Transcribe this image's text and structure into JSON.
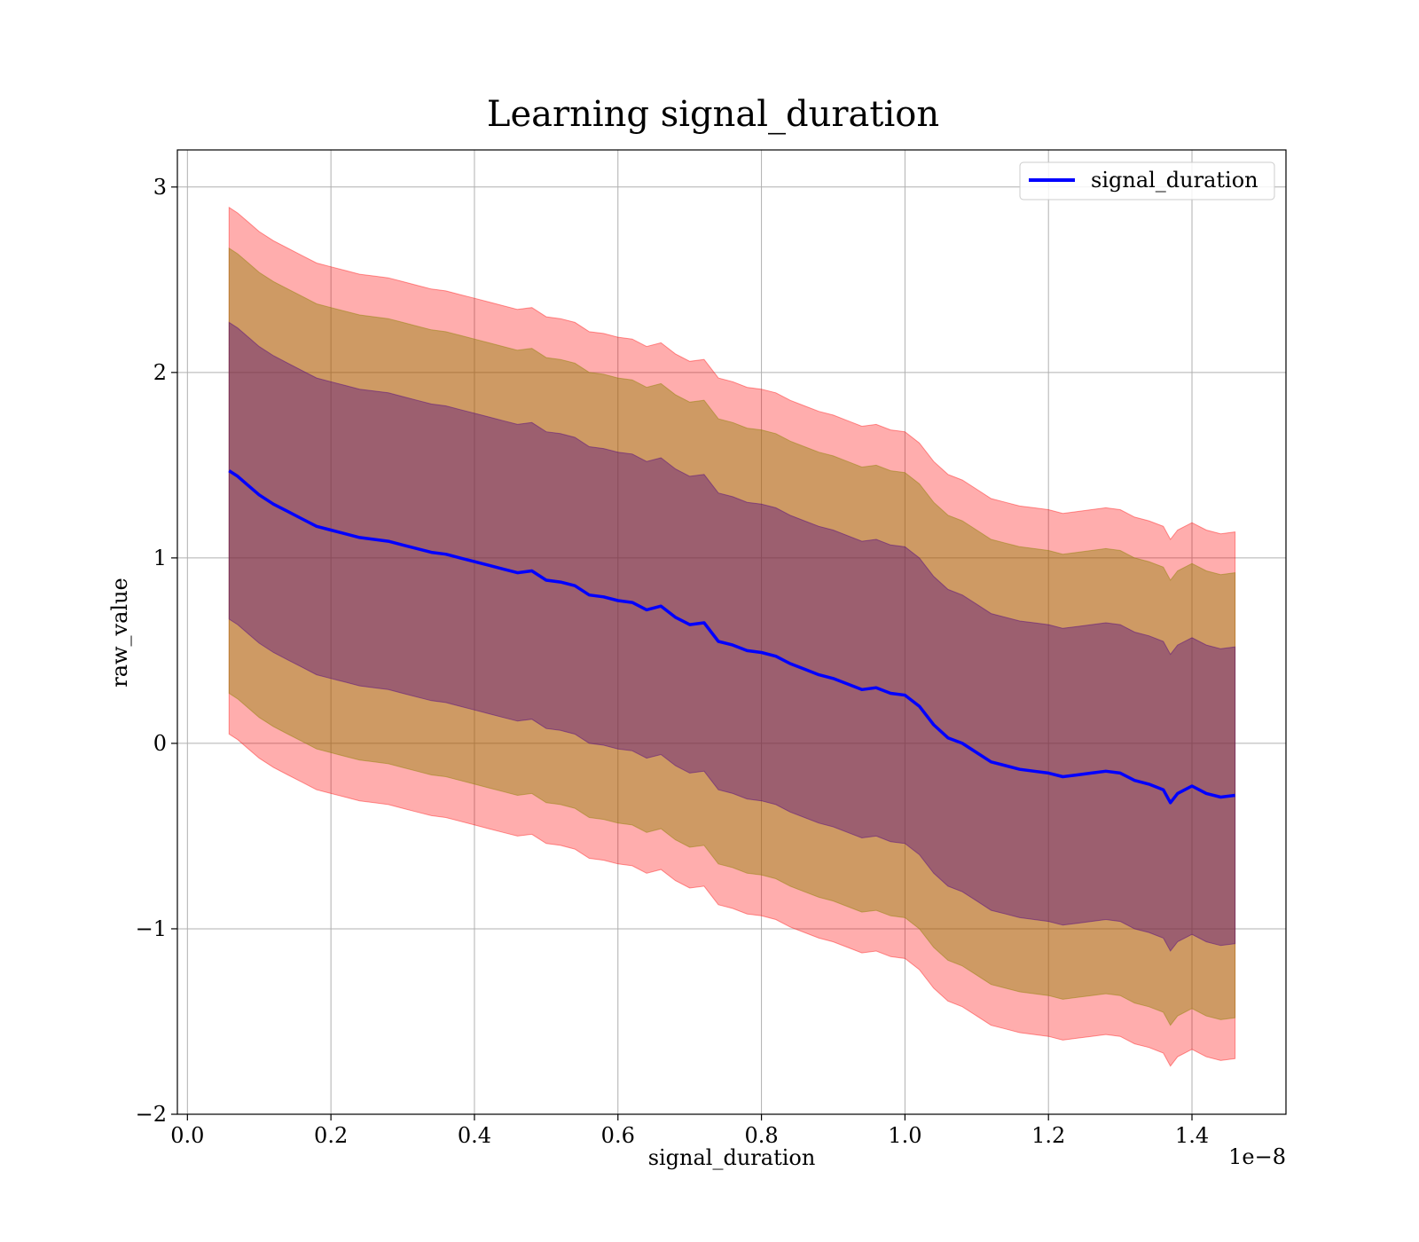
{
  "chart_data": {
    "type": "line",
    "title": "Learning signal_duration",
    "xlabel": "signal_duration",
    "ylabel": "raw_value",
    "x_offset_label": "1e−8",
    "xlim": [
      -0.014,
      1.531
    ],
    "ylim": [
      -2.0,
      3.2
    ],
    "x_ticks": [
      0.0,
      0.2,
      0.4,
      0.6,
      0.8,
      1.0,
      1.2,
      1.4
    ],
    "x_tick_labels": [
      "0.0",
      "0.2",
      "0.4",
      "0.6",
      "0.8",
      "1.0",
      "1.2",
      "1.4"
    ],
    "y_ticks": [
      -2,
      -1,
      0,
      1,
      2,
      3
    ],
    "y_tick_labels": [
      "−2",
      "−1",
      "0",
      "1",
      "2",
      "3"
    ],
    "grid": true,
    "legend": {
      "position": "top-right",
      "entries": [
        "signal_duration"
      ]
    },
    "colors": {
      "line": "#0000ff",
      "band_outer": "#ff0000",
      "band_middle": "#8b8000",
      "band_inner": "#4b0082"
    },
    "series": [
      {
        "name": "signal_duration",
        "x": [
          0.058,
          0.07,
          0.085,
          0.1,
          0.12,
          0.14,
          0.16,
          0.18,
          0.2,
          0.22,
          0.24,
          0.26,
          0.28,
          0.3,
          0.32,
          0.34,
          0.36,
          0.38,
          0.4,
          0.42,
          0.44,
          0.46,
          0.48,
          0.5,
          0.52,
          0.54,
          0.56,
          0.58,
          0.6,
          0.62,
          0.64,
          0.66,
          0.68,
          0.7,
          0.72,
          0.74,
          0.76,
          0.78,
          0.8,
          0.82,
          0.84,
          0.86,
          0.88,
          0.9,
          0.92,
          0.94,
          0.96,
          0.98,
          1.0,
          1.02,
          1.04,
          1.06,
          1.08,
          1.1,
          1.12,
          1.14,
          1.16,
          1.18,
          1.2,
          1.22,
          1.24,
          1.26,
          1.28,
          1.3,
          1.32,
          1.34,
          1.36,
          1.37,
          1.38,
          1.4,
          1.42,
          1.44,
          1.46
        ],
        "values": [
          1.47,
          1.44,
          1.39,
          1.34,
          1.29,
          1.25,
          1.21,
          1.17,
          1.15,
          1.13,
          1.11,
          1.1,
          1.09,
          1.07,
          1.05,
          1.03,
          1.02,
          1.0,
          0.98,
          0.96,
          0.94,
          0.92,
          0.93,
          0.88,
          0.87,
          0.85,
          0.8,
          0.79,
          0.77,
          0.76,
          0.72,
          0.74,
          0.68,
          0.64,
          0.65,
          0.55,
          0.53,
          0.5,
          0.49,
          0.47,
          0.43,
          0.4,
          0.37,
          0.35,
          0.32,
          0.29,
          0.3,
          0.27,
          0.26,
          0.2,
          0.1,
          0.03,
          0.0,
          -0.05,
          -0.1,
          -0.12,
          -0.14,
          -0.15,
          -0.16,
          -0.18,
          -0.17,
          -0.16,
          -0.15,
          -0.16,
          -0.2,
          -0.22,
          -0.25,
          -0.32,
          -0.27,
          -0.23,
          -0.27,
          -0.29,
          -0.28
        ],
        "band_inner_upper": [
          2.27,
          2.24,
          2.19,
          2.14,
          2.09,
          2.05,
          2.01,
          1.97,
          1.95,
          1.93,
          1.91,
          1.9,
          1.89,
          1.87,
          1.85,
          1.83,
          1.82,
          1.8,
          1.78,
          1.76,
          1.74,
          1.72,
          1.73,
          1.68,
          1.67,
          1.65,
          1.6,
          1.59,
          1.57,
          1.56,
          1.52,
          1.54,
          1.48,
          1.44,
          1.45,
          1.35,
          1.33,
          1.3,
          1.29,
          1.27,
          1.23,
          1.2,
          1.17,
          1.15,
          1.12,
          1.09,
          1.1,
          1.07,
          1.06,
          1.0,
          0.9,
          0.83,
          0.8,
          0.75,
          0.7,
          0.68,
          0.66,
          0.65,
          0.64,
          0.62,
          0.63,
          0.64,
          0.65,
          0.64,
          0.6,
          0.58,
          0.55,
          0.48,
          0.53,
          0.57,
          0.53,
          0.51,
          0.52
        ],
        "band_inner_lower": [
          0.67,
          0.64,
          0.59,
          0.54,
          0.49,
          0.45,
          0.41,
          0.37,
          0.35,
          0.33,
          0.31,
          0.3,
          0.29,
          0.27,
          0.25,
          0.23,
          0.22,
          0.2,
          0.18,
          0.16,
          0.14,
          0.12,
          0.13,
          0.08,
          0.07,
          0.05,
          0.0,
          -0.01,
          -0.03,
          -0.04,
          -0.08,
          -0.06,
          -0.12,
          -0.16,
          -0.15,
          -0.25,
          -0.27,
          -0.3,
          -0.31,
          -0.33,
          -0.37,
          -0.4,
          -0.43,
          -0.45,
          -0.48,
          -0.51,
          -0.5,
          -0.53,
          -0.54,
          -0.6,
          -0.7,
          -0.77,
          -0.8,
          -0.85,
          -0.9,
          -0.92,
          -0.94,
          -0.95,
          -0.96,
          -0.98,
          -0.97,
          -0.96,
          -0.95,
          -0.96,
          -1.0,
          -1.02,
          -1.05,
          -1.12,
          -1.07,
          -1.03,
          -1.07,
          -1.09,
          -1.08
        ],
        "band_middle_upper": [
          2.67,
          2.64,
          2.59,
          2.54,
          2.49,
          2.45,
          2.41,
          2.37,
          2.35,
          2.33,
          2.31,
          2.3,
          2.29,
          2.27,
          2.25,
          2.23,
          2.22,
          2.2,
          2.18,
          2.16,
          2.14,
          2.12,
          2.13,
          2.08,
          2.07,
          2.05,
          2.0,
          1.99,
          1.97,
          1.96,
          1.92,
          1.94,
          1.88,
          1.84,
          1.85,
          1.75,
          1.73,
          1.7,
          1.69,
          1.67,
          1.63,
          1.6,
          1.57,
          1.55,
          1.52,
          1.49,
          1.5,
          1.47,
          1.46,
          1.4,
          1.3,
          1.23,
          1.2,
          1.15,
          1.1,
          1.08,
          1.06,
          1.05,
          1.04,
          1.02,
          1.03,
          1.04,
          1.05,
          1.04,
          1.0,
          0.98,
          0.95,
          0.88,
          0.93,
          0.97,
          0.93,
          0.91,
          0.92
        ],
        "band_middle_lower": [
          0.27,
          0.24,
          0.19,
          0.14,
          0.09,
          0.05,
          0.01,
          -0.03,
          -0.05,
          -0.07,
          -0.09,
          -0.1,
          -0.11,
          -0.13,
          -0.15,
          -0.17,
          -0.18,
          -0.2,
          -0.22,
          -0.24,
          -0.26,
          -0.28,
          -0.27,
          -0.32,
          -0.33,
          -0.35,
          -0.4,
          -0.41,
          -0.43,
          -0.44,
          -0.48,
          -0.46,
          -0.52,
          -0.56,
          -0.55,
          -0.65,
          -0.67,
          -0.7,
          -0.71,
          -0.73,
          -0.77,
          -0.8,
          -0.83,
          -0.85,
          -0.88,
          -0.91,
          -0.9,
          -0.93,
          -0.94,
          -1.0,
          -1.1,
          -1.17,
          -1.2,
          -1.25,
          -1.3,
          -1.32,
          -1.34,
          -1.35,
          -1.36,
          -1.38,
          -1.37,
          -1.36,
          -1.35,
          -1.36,
          -1.4,
          -1.42,
          -1.45,
          -1.52,
          -1.47,
          -1.43,
          -1.47,
          -1.49,
          -1.48
        ],
        "band_outer_upper": [
          2.89,
          2.86,
          2.81,
          2.76,
          2.71,
          2.67,
          2.63,
          2.59,
          2.57,
          2.55,
          2.53,
          2.52,
          2.51,
          2.49,
          2.47,
          2.45,
          2.44,
          2.42,
          2.4,
          2.38,
          2.36,
          2.34,
          2.35,
          2.3,
          2.29,
          2.27,
          2.22,
          2.21,
          2.19,
          2.18,
          2.14,
          2.16,
          2.1,
          2.06,
          2.07,
          1.97,
          1.95,
          1.92,
          1.91,
          1.89,
          1.85,
          1.82,
          1.79,
          1.77,
          1.74,
          1.71,
          1.72,
          1.69,
          1.68,
          1.62,
          1.52,
          1.45,
          1.42,
          1.37,
          1.32,
          1.3,
          1.28,
          1.27,
          1.26,
          1.24,
          1.25,
          1.26,
          1.27,
          1.26,
          1.22,
          1.2,
          1.17,
          1.1,
          1.15,
          1.19,
          1.15,
          1.13,
          1.14
        ],
        "band_outer_lower": [
          0.05,
          0.02,
          -0.03,
          -0.08,
          -0.13,
          -0.17,
          -0.21,
          -0.25,
          -0.27,
          -0.29,
          -0.31,
          -0.32,
          -0.33,
          -0.35,
          -0.37,
          -0.39,
          -0.4,
          -0.42,
          -0.44,
          -0.46,
          -0.48,
          -0.5,
          -0.49,
          -0.54,
          -0.55,
          -0.57,
          -0.62,
          -0.63,
          -0.65,
          -0.66,
          -0.7,
          -0.68,
          -0.74,
          -0.78,
          -0.77,
          -0.87,
          -0.89,
          -0.92,
          -0.93,
          -0.95,
          -0.99,
          -1.02,
          -1.05,
          -1.07,
          -1.1,
          -1.13,
          -1.12,
          -1.15,
          -1.16,
          -1.22,
          -1.32,
          -1.39,
          -1.42,
          -1.47,
          -1.52,
          -1.54,
          -1.56,
          -1.57,
          -1.58,
          -1.6,
          -1.59,
          -1.58,
          -1.57,
          -1.58,
          -1.62,
          -1.64,
          -1.67,
          -1.74,
          -1.69,
          -1.65,
          -1.69,
          -1.71,
          -1.7
        ]
      }
    ]
  }
}
